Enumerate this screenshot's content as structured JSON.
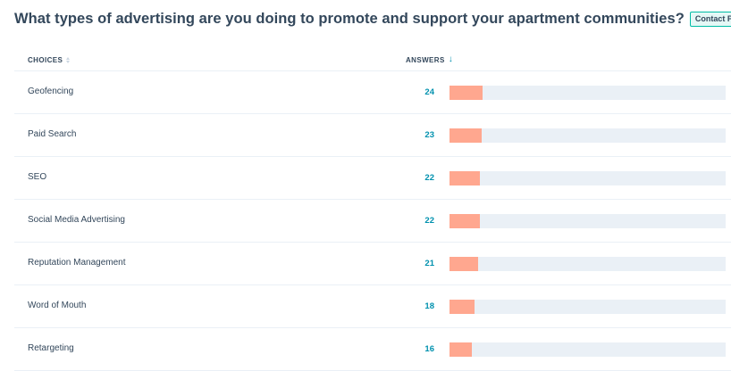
{
  "question": {
    "title": "What types of advertising are you doing to promote and support your apartment communities?",
    "tag": "Contact Property"
  },
  "table": {
    "columns": {
      "choices": "CHOICES",
      "answers": "ANSWERS"
    },
    "max_answers": 200,
    "rows": [
      {
        "label": "Geofencing",
        "count": 24
      },
      {
        "label": "Paid Search",
        "count": 23
      },
      {
        "label": "SEO",
        "count": 22
      },
      {
        "label": "Social Media Advertising",
        "count": 22
      },
      {
        "label": "Reputation Management",
        "count": 21
      },
      {
        "label": "Word of Mouth",
        "count": 18
      },
      {
        "label": "Retargeting",
        "count": 16
      }
    ]
  },
  "colors": {
    "bar_fill": "#ffa78f",
    "bar_track": "#eaf0f6",
    "count_text": "#0091ae",
    "tag_border": "#00bda5"
  }
}
